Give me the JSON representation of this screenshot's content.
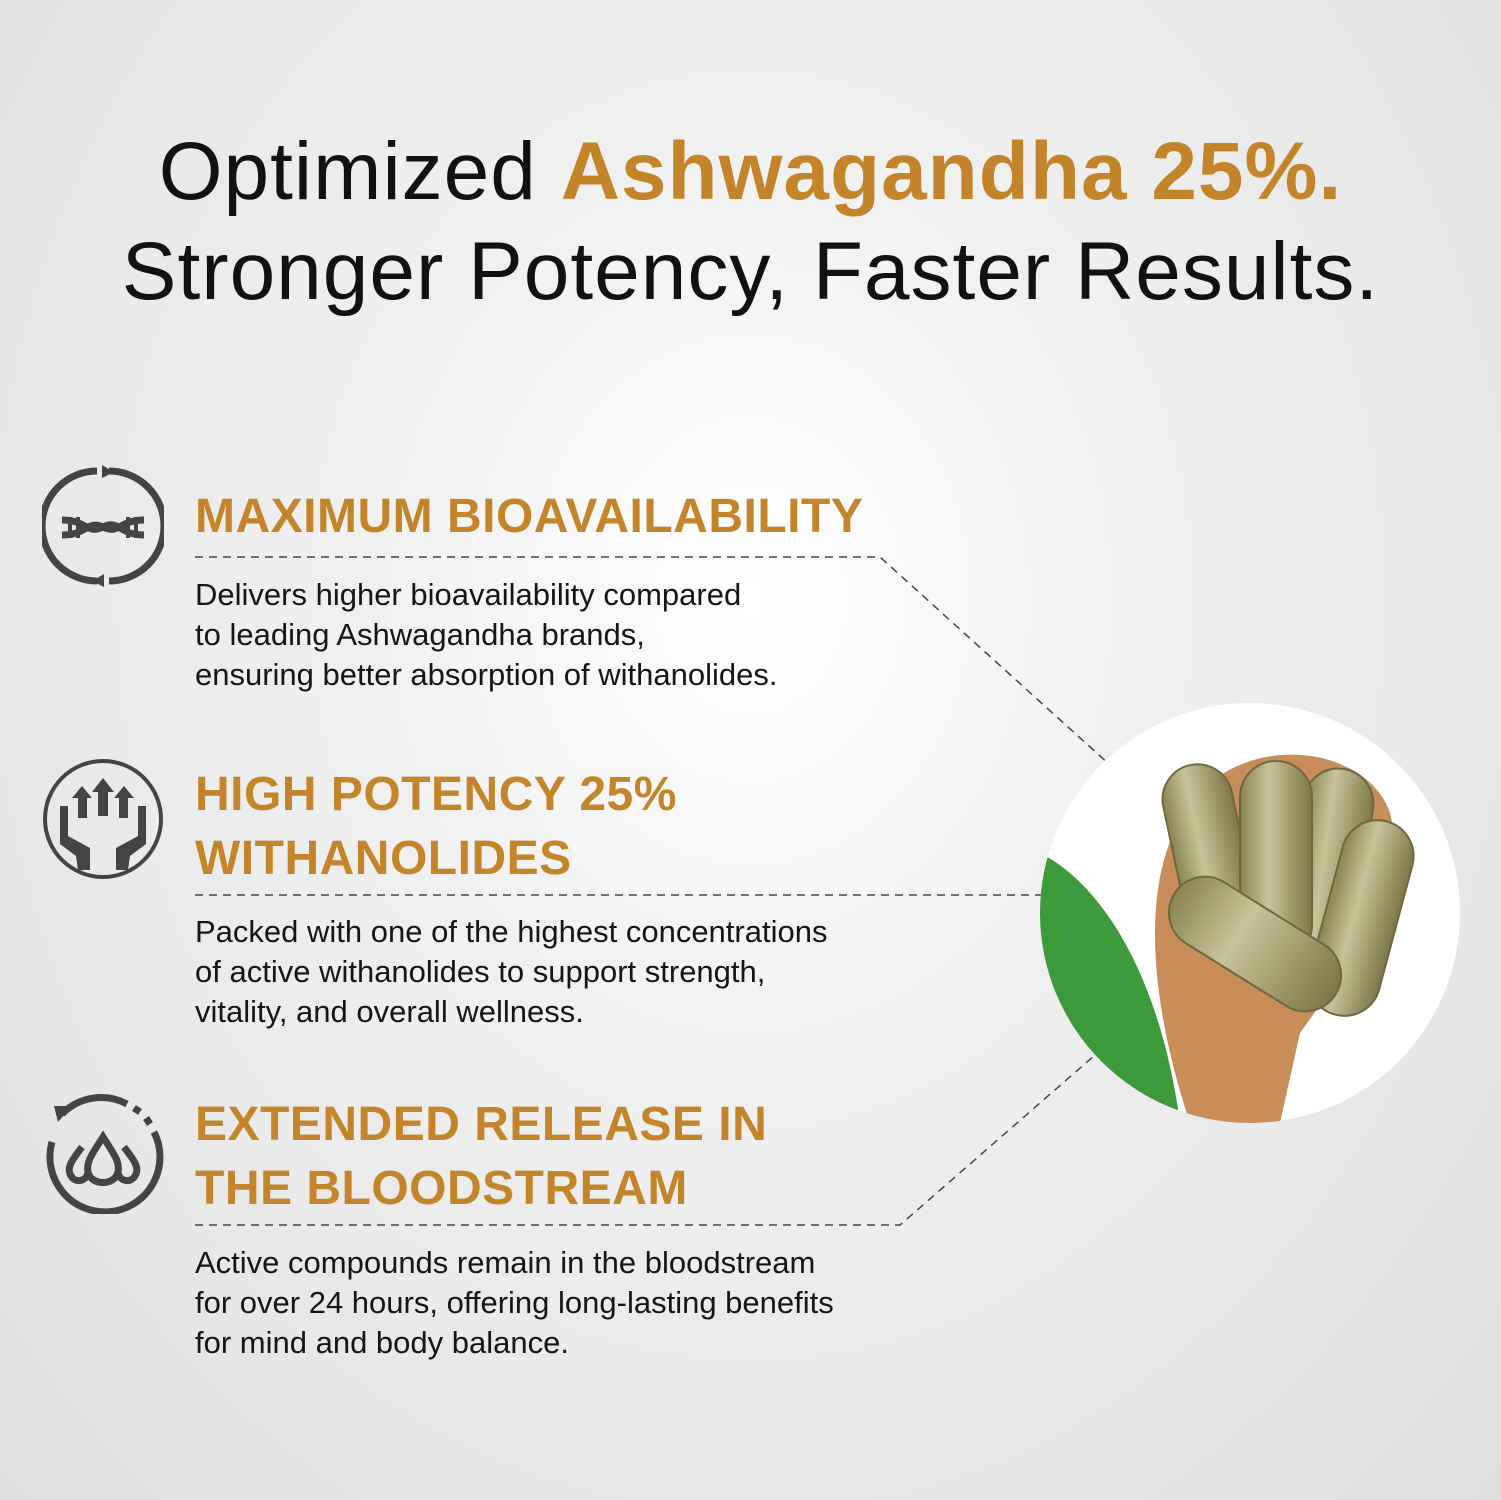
{
  "header": {
    "line1_prefix": "Optimized",
    "line1_highlight": "Ashwagandha 25%.",
    "line2": "Stronger Potency, Faster Results."
  },
  "accent_color": "#c4852a",
  "features": [
    {
      "icon": "dna-cycle-icon",
      "title": "MAXIMUM BIOAVAILABILITY",
      "title_line2": "",
      "lines": [
        "Delivers higher bioavailability compared",
        "to leading Ashwagandha brands,",
        "ensuring better absorption of withanolides."
      ]
    },
    {
      "icon": "hands-arrows-up-icon",
      "title": "HIGH POTENCY 25%",
      "title_line2": "WITHANOLIDES",
      "lines": [
        "Packed with one of the highest concentrations",
        "of active withanolides to support strength,",
        "vitality, and overall wellness."
      ]
    },
    {
      "icon": "drops-cycle-icon",
      "title": "EXTENDED RELEASE IN",
      "title_line2": "THE BLOODSTREAM",
      "lines": [
        "Active compounds remain in the bloodstream",
        "for over 24 hours, offering long-lasting benefits",
        "for mind and body balance."
      ]
    }
  ],
  "product_image": "capsules-on-wooden-spoon-with-leaf"
}
